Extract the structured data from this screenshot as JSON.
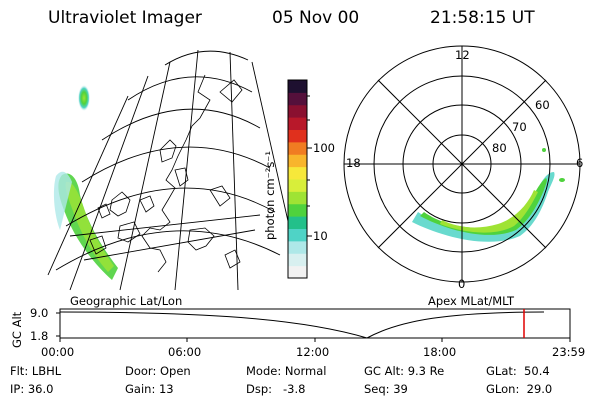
{
  "header": {
    "instrument": "Ultraviolet Imager",
    "date": "05 Nov 00",
    "time": "21:58:15 UT"
  },
  "colorbar": {
    "unit_label": "photon cm⁻²s⁻¹",
    "ticks": [
      "100",
      "10"
    ],
    "colors": [
      "#f2f2f2",
      "#d8f0f0",
      "#aee8e8",
      "#4fd3c6",
      "#23c08a",
      "#4fd23d",
      "#9fe334",
      "#d8ee3a",
      "#f7e83a",
      "#f8b52c",
      "#f07c22",
      "#e0301d",
      "#b8182a",
      "#8a1030",
      "#55103b",
      "#1e1030"
    ]
  },
  "geo_panel": {
    "label": "Geographic Lat/Lon"
  },
  "polar_panel": {
    "label": "Apex MLat/MLT",
    "mlt_labels": {
      "top": "12",
      "left": "18",
      "right": "6",
      "bottom": "0"
    },
    "lat_labels": [
      "60",
      "70",
      "80"
    ]
  },
  "timeline": {
    "y_axis_label": "GC Alt",
    "y_ticks": [
      "9.0",
      "1.8"
    ],
    "x_ticks": [
      "00:00",
      "06:00",
      "12:00",
      "18:00",
      "23:59"
    ],
    "current_marker_color": "#e00000"
  },
  "status": {
    "flt": "Flt: LBHL",
    "ip": "IP: 36.0",
    "door": "Door: Open",
    "gain": "Gain: 13",
    "mode": "Mode: Normal",
    "dsp": "Dsp:   -3.8",
    "gc_alt": "GC Alt: 9.3 Re",
    "seq": "Seq: 39",
    "glat": "GLat:  50.4",
    "glon": "GLon:  29.0"
  }
}
